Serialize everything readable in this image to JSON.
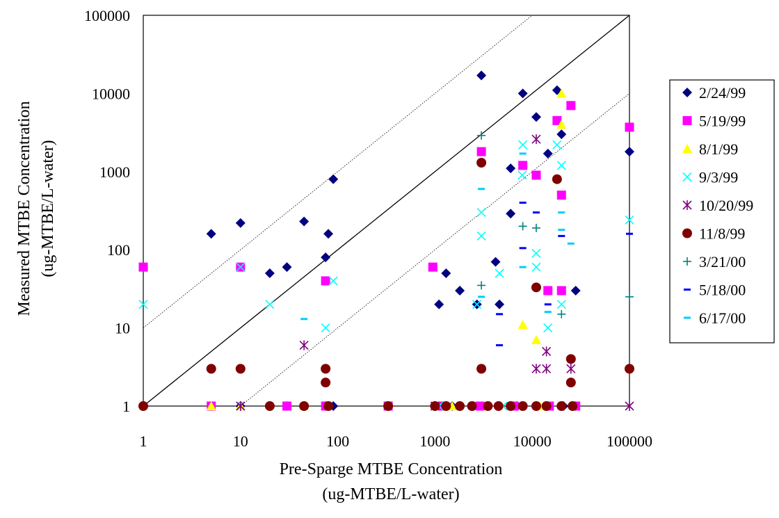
{
  "chart_data": {
    "type": "scatter",
    "xscale": "log",
    "yscale": "log",
    "xlim": [
      1,
      100000
    ],
    "ylim": [
      1,
      100000
    ],
    "x_ticks": [
      "1",
      "10",
      "100",
      "1000",
      "10000",
      "100000"
    ],
    "y_ticks": [
      "1",
      "10",
      "100",
      "1000",
      "10000",
      "100000"
    ],
    "xlabel_line1": "Pre-Sparge MTBE Concentration",
    "xlabel_line2": "(ug-MTBE/L-water)",
    "ylabel_line1": "Measured MTBE Concentration",
    "ylabel_line2": "(ug-MTBE/L-water)",
    "legend_position": "right",
    "grid": false,
    "reference_lines": [
      {
        "kind": "solid",
        "factor": 1
      },
      {
        "kind": "dotted",
        "factor": 10
      },
      {
        "kind": "dotted",
        "factor": 0.1
      }
    ],
    "series": [
      {
        "name": "2/24/99",
        "marker": "diamond",
        "color": "#000080",
        "points": [
          [
            1,
            1
          ],
          [
            5,
            160
          ],
          [
            10,
            220
          ],
          [
            20,
            50
          ],
          [
            30,
            60
          ],
          [
            45,
            230
          ],
          [
            75,
            80
          ],
          [
            80,
            160
          ],
          [
            90,
            800
          ],
          [
            1100,
            20
          ],
          [
            1300,
            50
          ],
          [
            1800,
            30
          ],
          [
            2700,
            20
          ],
          [
            3000,
            17000
          ],
          [
            4200,
            70
          ],
          [
            4600,
            20
          ],
          [
            6000,
            1100
          ],
          [
            6000,
            290
          ],
          [
            8000,
            10000
          ],
          [
            11000,
            5000
          ],
          [
            14500,
            1700
          ],
          [
            18000,
            11000
          ],
          [
            20000,
            3000
          ],
          [
            28000,
            30
          ],
          [
            100000,
            1800
          ],
          [
            5,
            1
          ],
          [
            10,
            1
          ],
          [
            20,
            1
          ],
          [
            30,
            1
          ],
          [
            75,
            1
          ],
          [
            90,
            1
          ],
          [
            330,
            1
          ],
          [
            1000,
            1
          ],
          [
            1500,
            1
          ],
          [
            2500,
            1
          ],
          [
            4500,
            1
          ],
          [
            7000,
            1
          ],
          [
            11000,
            1
          ],
          [
            14000,
            1
          ],
          [
            21000,
            1
          ],
          [
            28000,
            1
          ]
        ]
      },
      {
        "name": "5/19/99",
        "marker": "square",
        "color": "#FF00FF",
        "points": [
          [
            1,
            60
          ],
          [
            10,
            60
          ],
          [
            75,
            40
          ],
          [
            950,
            60
          ],
          [
            3000,
            1800
          ],
          [
            8000,
            1200
          ],
          [
            11000,
            900
          ],
          [
            14500,
            30
          ],
          [
            18000,
            4500
          ],
          [
            20000,
            30
          ],
          [
            20000,
            500
          ],
          [
            25000,
            7000
          ],
          [
            100000,
            3700
          ],
          [
            5,
            1
          ],
          [
            30,
            1
          ],
          [
            75,
            1
          ],
          [
            330,
            1
          ],
          [
            1200,
            1
          ],
          [
            2900,
            1
          ],
          [
            6500,
            1
          ],
          [
            15000,
            1
          ],
          [
            28000,
            1
          ]
        ]
      },
      {
        "name": "8/1/99",
        "marker": "triangle",
        "color": "#FFFF00",
        "points": [
          [
            8000,
            11
          ],
          [
            11000,
            7
          ],
          [
            20000,
            4000
          ],
          [
            20000,
            10000
          ],
          [
            5,
            1
          ],
          [
            10,
            1
          ],
          [
            45,
            1
          ],
          [
            1500,
            1
          ],
          [
            12000,
            1
          ]
        ]
      },
      {
        "name": "9/3/99",
        "marker": "x",
        "color": "#00FFFF",
        "points": [
          [
            1,
            20
          ],
          [
            10,
            60
          ],
          [
            20,
            20
          ],
          [
            75,
            10
          ],
          [
            90,
            40
          ],
          [
            2700,
            20
          ],
          [
            3000,
            150
          ],
          [
            3000,
            300
          ],
          [
            4600,
            50
          ],
          [
            7900,
            900
          ],
          [
            8000,
            2200
          ],
          [
            11000,
            90
          ],
          [
            11000,
            60
          ],
          [
            14500,
            10
          ],
          [
            18000,
            2200
          ],
          [
            20000,
            1200
          ],
          [
            20000,
            20
          ],
          [
            100000,
            240
          ],
          [
            10,
            1
          ],
          [
            1100,
            1
          ],
          [
            5000,
            1
          ]
        ]
      },
      {
        "name": "10/20/99",
        "marker": "asterisk",
        "color": "#800080",
        "points": [
          [
            45,
            6
          ],
          [
            11000,
            2600
          ],
          [
            11000,
            3
          ],
          [
            14000,
            3
          ],
          [
            14000,
            5
          ],
          [
            25000,
            3
          ],
          [
            10,
            1
          ],
          [
            1000,
            1
          ],
          [
            100000,
            1
          ]
        ]
      },
      {
        "name": "11/8/99",
        "marker": "circle",
        "color": "#800000",
        "points": [
          [
            5,
            3
          ],
          [
            10,
            3
          ],
          [
            75,
            3
          ],
          [
            75,
            2
          ],
          [
            3000,
            1300
          ],
          [
            3000,
            3
          ],
          [
            11000,
            33
          ],
          [
            18000,
            800
          ],
          [
            25000,
            4
          ],
          [
            25000,
            2
          ],
          [
            100000,
            3
          ],
          [
            1,
            1
          ],
          [
            20,
            1
          ],
          [
            45,
            1
          ],
          [
            80,
            1
          ],
          [
            330,
            1
          ],
          [
            1000,
            1
          ],
          [
            1300,
            1
          ],
          [
            1800,
            1
          ],
          [
            2400,
            1
          ],
          [
            3500,
            1
          ],
          [
            4500,
            1
          ],
          [
            6000,
            1
          ],
          [
            8000,
            1
          ],
          [
            11000,
            1
          ],
          [
            14000,
            1
          ],
          [
            20000,
            1
          ],
          [
            26000,
            1
          ]
        ]
      },
      {
        "name": "3/21/00",
        "marker": "plus",
        "color": "#008080",
        "points": [
          [
            3000,
            2900
          ],
          [
            3000,
            35
          ],
          [
            8000,
            200
          ],
          [
            11000,
            190
          ],
          [
            20000,
            15
          ],
          [
            100000,
            25
          ]
        ]
      },
      {
        "name": "5/18/00",
        "marker": "dash",
        "color": "#0000FF",
        "points": [
          [
            4600,
            15
          ],
          [
            4600,
            6
          ],
          [
            8000,
            400
          ],
          [
            8000,
            105
          ],
          [
            11000,
            300
          ],
          [
            14500,
            20
          ],
          [
            20000,
            150
          ],
          [
            100000,
            160
          ]
        ]
      },
      {
        "name": "6/17/00",
        "marker": "dash",
        "color": "#00CCFF",
        "points": [
          [
            45,
            13
          ],
          [
            3000,
            600
          ],
          [
            3000,
            25
          ],
          [
            8000,
            1700
          ],
          [
            8000,
            60
          ],
          [
            14500,
            16
          ],
          [
            20000,
            300
          ],
          [
            20000,
            180
          ],
          [
            25000,
            120
          ]
        ]
      }
    ]
  }
}
